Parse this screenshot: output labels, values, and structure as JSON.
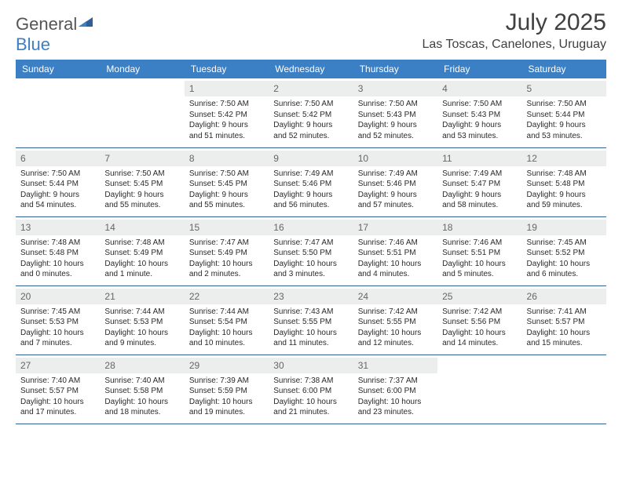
{
  "logo": {
    "word1": "General",
    "word2": "Blue"
  },
  "title": {
    "month_year": "July 2025",
    "location": "Las Toscas, Canelones, Uruguay"
  },
  "day_headers": [
    "Sunday",
    "Monday",
    "Tuesday",
    "Wednesday",
    "Thursday",
    "Friday",
    "Saturday"
  ],
  "colors": {
    "header_bg": "#3b7fc4",
    "header_text": "#ffffff",
    "daynum_bg": "#eceded",
    "border": "#2e5f97",
    "logo_gray": "#555555",
    "logo_blue": "#3b7fc4",
    "page_bg": "#ffffff",
    "text": "#333333"
  },
  "weeks": [
    [
      {
        "n": "",
        "lines": []
      },
      {
        "n": "",
        "lines": []
      },
      {
        "n": "1",
        "lines": [
          "Sunrise: 7:50 AM",
          "Sunset: 5:42 PM",
          "Daylight: 9 hours",
          "and 51 minutes."
        ]
      },
      {
        "n": "2",
        "lines": [
          "Sunrise: 7:50 AM",
          "Sunset: 5:42 PM",
          "Daylight: 9 hours",
          "and 52 minutes."
        ]
      },
      {
        "n": "3",
        "lines": [
          "Sunrise: 7:50 AM",
          "Sunset: 5:43 PM",
          "Daylight: 9 hours",
          "and 52 minutes."
        ]
      },
      {
        "n": "4",
        "lines": [
          "Sunrise: 7:50 AM",
          "Sunset: 5:43 PM",
          "Daylight: 9 hours",
          "and 53 minutes."
        ]
      },
      {
        "n": "5",
        "lines": [
          "Sunrise: 7:50 AM",
          "Sunset: 5:44 PM",
          "Daylight: 9 hours",
          "and 53 minutes."
        ]
      }
    ],
    [
      {
        "n": "6",
        "lines": [
          "Sunrise: 7:50 AM",
          "Sunset: 5:44 PM",
          "Daylight: 9 hours",
          "and 54 minutes."
        ]
      },
      {
        "n": "7",
        "lines": [
          "Sunrise: 7:50 AM",
          "Sunset: 5:45 PM",
          "Daylight: 9 hours",
          "and 55 minutes."
        ]
      },
      {
        "n": "8",
        "lines": [
          "Sunrise: 7:50 AM",
          "Sunset: 5:45 PM",
          "Daylight: 9 hours",
          "and 55 minutes."
        ]
      },
      {
        "n": "9",
        "lines": [
          "Sunrise: 7:49 AM",
          "Sunset: 5:46 PM",
          "Daylight: 9 hours",
          "and 56 minutes."
        ]
      },
      {
        "n": "10",
        "lines": [
          "Sunrise: 7:49 AM",
          "Sunset: 5:46 PM",
          "Daylight: 9 hours",
          "and 57 minutes."
        ]
      },
      {
        "n": "11",
        "lines": [
          "Sunrise: 7:49 AM",
          "Sunset: 5:47 PM",
          "Daylight: 9 hours",
          "and 58 minutes."
        ]
      },
      {
        "n": "12",
        "lines": [
          "Sunrise: 7:48 AM",
          "Sunset: 5:48 PM",
          "Daylight: 9 hours",
          "and 59 minutes."
        ]
      }
    ],
    [
      {
        "n": "13",
        "lines": [
          "Sunrise: 7:48 AM",
          "Sunset: 5:48 PM",
          "Daylight: 10 hours",
          "and 0 minutes."
        ]
      },
      {
        "n": "14",
        "lines": [
          "Sunrise: 7:48 AM",
          "Sunset: 5:49 PM",
          "Daylight: 10 hours",
          "and 1 minute."
        ]
      },
      {
        "n": "15",
        "lines": [
          "Sunrise: 7:47 AM",
          "Sunset: 5:49 PM",
          "Daylight: 10 hours",
          "and 2 minutes."
        ]
      },
      {
        "n": "16",
        "lines": [
          "Sunrise: 7:47 AM",
          "Sunset: 5:50 PM",
          "Daylight: 10 hours",
          "and 3 minutes."
        ]
      },
      {
        "n": "17",
        "lines": [
          "Sunrise: 7:46 AM",
          "Sunset: 5:51 PM",
          "Daylight: 10 hours",
          "and 4 minutes."
        ]
      },
      {
        "n": "18",
        "lines": [
          "Sunrise: 7:46 AM",
          "Sunset: 5:51 PM",
          "Daylight: 10 hours",
          "and 5 minutes."
        ]
      },
      {
        "n": "19",
        "lines": [
          "Sunrise: 7:45 AM",
          "Sunset: 5:52 PM",
          "Daylight: 10 hours",
          "and 6 minutes."
        ]
      }
    ],
    [
      {
        "n": "20",
        "lines": [
          "Sunrise: 7:45 AM",
          "Sunset: 5:53 PM",
          "Daylight: 10 hours",
          "and 7 minutes."
        ]
      },
      {
        "n": "21",
        "lines": [
          "Sunrise: 7:44 AM",
          "Sunset: 5:53 PM",
          "Daylight: 10 hours",
          "and 9 minutes."
        ]
      },
      {
        "n": "22",
        "lines": [
          "Sunrise: 7:44 AM",
          "Sunset: 5:54 PM",
          "Daylight: 10 hours",
          "and 10 minutes."
        ]
      },
      {
        "n": "23",
        "lines": [
          "Sunrise: 7:43 AM",
          "Sunset: 5:55 PM",
          "Daylight: 10 hours",
          "and 11 minutes."
        ]
      },
      {
        "n": "24",
        "lines": [
          "Sunrise: 7:42 AM",
          "Sunset: 5:55 PM",
          "Daylight: 10 hours",
          "and 12 minutes."
        ]
      },
      {
        "n": "25",
        "lines": [
          "Sunrise: 7:42 AM",
          "Sunset: 5:56 PM",
          "Daylight: 10 hours",
          "and 14 minutes."
        ]
      },
      {
        "n": "26",
        "lines": [
          "Sunrise: 7:41 AM",
          "Sunset: 5:57 PM",
          "Daylight: 10 hours",
          "and 15 minutes."
        ]
      }
    ],
    [
      {
        "n": "27",
        "lines": [
          "Sunrise: 7:40 AM",
          "Sunset: 5:57 PM",
          "Daylight: 10 hours",
          "and 17 minutes."
        ]
      },
      {
        "n": "28",
        "lines": [
          "Sunrise: 7:40 AM",
          "Sunset: 5:58 PM",
          "Daylight: 10 hours",
          "and 18 minutes."
        ]
      },
      {
        "n": "29",
        "lines": [
          "Sunrise: 7:39 AM",
          "Sunset: 5:59 PM",
          "Daylight: 10 hours",
          "and 19 minutes."
        ]
      },
      {
        "n": "30",
        "lines": [
          "Sunrise: 7:38 AM",
          "Sunset: 6:00 PM",
          "Daylight: 10 hours",
          "and 21 minutes."
        ]
      },
      {
        "n": "31",
        "lines": [
          "Sunrise: 7:37 AM",
          "Sunset: 6:00 PM",
          "Daylight: 10 hours",
          "and 23 minutes."
        ]
      },
      {
        "n": "",
        "lines": []
      },
      {
        "n": "",
        "lines": []
      }
    ]
  ]
}
